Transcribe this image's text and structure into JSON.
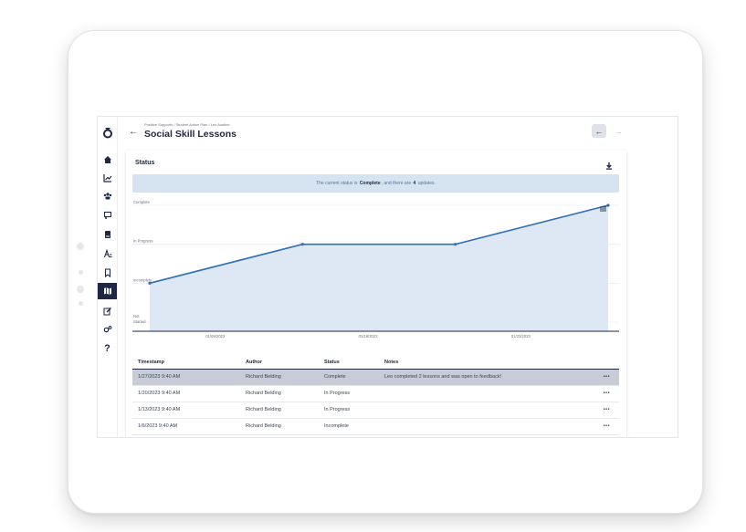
{
  "breadcrumb": "Positive Supports / Student Action Plan / Leo Austine",
  "title": "Social Skill Lessons",
  "nav": {
    "back_icon": "arrow-left-icon",
    "prev_icon": "arrow-left-icon",
    "next_icon": "arrow-right-icon"
  },
  "sidebar": {
    "logo": "brand-logo-icon",
    "items": [
      {
        "icon": "home-icon"
      },
      {
        "icon": "chart-icon"
      },
      {
        "icon": "users-icon"
      },
      {
        "icon": "presentation-icon"
      },
      {
        "icon": "book-icon"
      },
      {
        "icon": "abc-icon"
      },
      {
        "icon": "bookmark-icon"
      },
      {
        "icon": "map-icon",
        "active": true
      },
      {
        "icon": "edit-icon"
      },
      {
        "icon": "settings-icon"
      },
      {
        "icon": "help-icon"
      }
    ]
  },
  "status": {
    "title": "Status",
    "banner_prefix": "The current status is",
    "banner_status": "Complete",
    "banner_mid": ", and there are",
    "banner_count": "4",
    "banner_suffix": "updates."
  },
  "chart_data": {
    "type": "line",
    "y_categories": [
      "Not Started",
      "Incomplete",
      "In Progress",
      "Complete"
    ],
    "x_tick_labels": [
      "01/09/2023",
      "01/16/2023",
      "01/23/2023"
    ],
    "points": [
      {
        "x": "1/6/2023",
        "y": "Incomplete"
      },
      {
        "x": "1/13/2023",
        "y": "In Progress"
      },
      {
        "x": "1/20/2023",
        "y": "In Progress"
      },
      {
        "x": "1/27/2023",
        "y": "Complete"
      }
    ],
    "grid": true,
    "area_fill": true,
    "line_color": "#2f6fb3",
    "fill_color": "#dce7f3",
    "menu_icon": "hamburger-menu-icon"
  },
  "table": {
    "columns": [
      "Timestamp",
      "Author",
      "Status",
      "Notes"
    ],
    "rows": [
      {
        "timestamp": "1/27/2023 9:40 AM",
        "author": "Richard Belding",
        "status": "Complete",
        "notes": "Leo completed 2 lessons and was open to feedback!",
        "more": "•••",
        "selected": true
      },
      {
        "timestamp": "1/20/2023 9:40 AM",
        "author": "Richard Belding",
        "status": "In Progress",
        "notes": "",
        "more": "•••"
      },
      {
        "timestamp": "1/13/2023 9:40 AM",
        "author": "Richard Belding",
        "status": "In Progress",
        "notes": "",
        "more": "•••"
      },
      {
        "timestamp": "1/6/2023 9:40 AM",
        "author": "Richard Belding",
        "status": "Incomplete",
        "notes": "",
        "more": "•••"
      }
    ]
  },
  "colors": {
    "navy": "#1e2746",
    "accent": "#2f6fb3",
    "banner_bg": "#d6e4f2"
  }
}
